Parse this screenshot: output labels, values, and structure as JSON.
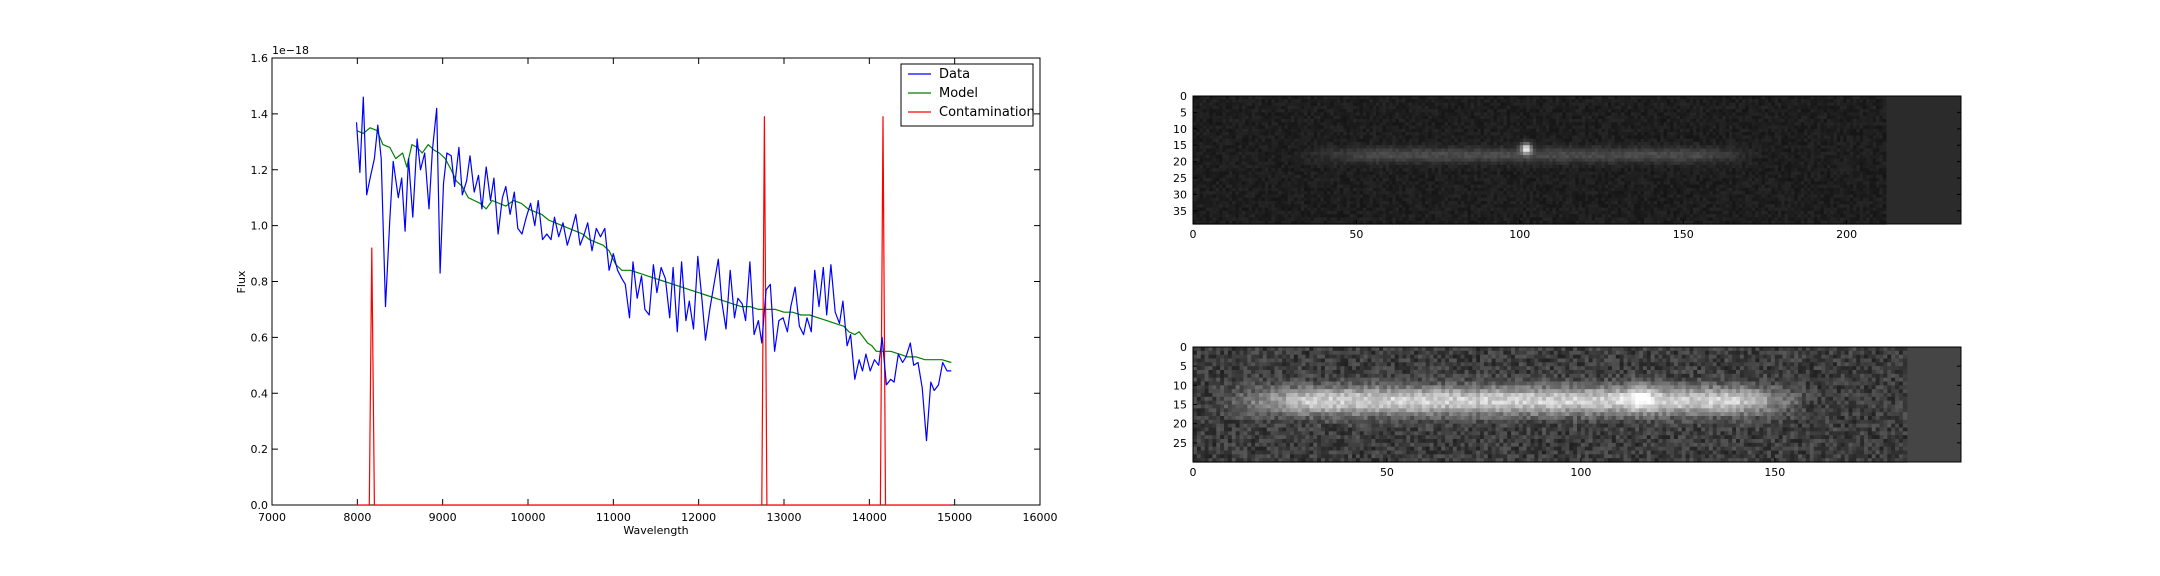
{
  "chart_data": [
    {
      "type": "line",
      "title": "",
      "xlabel": "Wavelength",
      "ylabel": "Flux",
      "xlim": [
        7000,
        16000
      ],
      "ylim": [
        0.0,
        1.6
      ],
      "offset_text": "1e−18",
      "x_ticks": [
        "7000",
        "8000",
        "9000",
        "10000",
        "11000",
        "12000",
        "13000",
        "14000",
        "15000",
        "16000"
      ],
      "y_ticks": [
        "0.0",
        "0.2",
        "0.4",
        "0.6",
        "0.8",
        "1.0",
        "1.2",
        "1.4",
        "1.6"
      ],
      "legend_position": "top-right",
      "series": [
        {
          "name": "Data",
          "color": "#0000ff",
          "points": [
            [
              7990,
              1.37
            ],
            [
              8030,
              1.19
            ],
            [
              8070,
              1.46
            ],
            [
              8110,
              1.11
            ],
            [
              8150,
              1.17
            ],
            [
              8200,
              1.24
            ],
            [
              8240,
              1.36
            ],
            [
              8280,
              1.24
            ],
            [
              8330,
              0.71
            ],
            [
              8380,
              1.02
            ],
            [
              8420,
              1.23
            ],
            [
              8480,
              1.1
            ],
            [
              8520,
              1.17
            ],
            [
              8560,
              0.98
            ],
            [
              8600,
              1.24
            ],
            [
              8650,
              1.03
            ],
            [
              8700,
              1.31
            ],
            [
              8740,
              1.2
            ],
            [
              8790,
              1.26
            ],
            [
              8840,
              1.06
            ],
            [
              8880,
              1.27
            ],
            [
              8930,
              1.42
            ],
            [
              8970,
              0.83
            ],
            [
              9010,
              1.15
            ],
            [
              9050,
              1.26
            ],
            [
              9100,
              1.25
            ],
            [
              9140,
              1.14
            ],
            [
              9190,
              1.28
            ],
            [
              9230,
              1.11
            ],
            [
              9280,
              1.16
            ],
            [
              9320,
              1.25
            ],
            [
              9370,
              1.12
            ],
            [
              9420,
              1.18
            ],
            [
              9460,
              1.06
            ],
            [
              9510,
              1.21
            ],
            [
              9560,
              1.09
            ],
            [
              9600,
              1.17
            ],
            [
              9650,
              0.97
            ],
            [
              9700,
              1.1
            ],
            [
              9740,
              1.14
            ],
            [
              9790,
              1.04
            ],
            [
              9840,
              1.12
            ],
            [
              9880,
              0.99
            ],
            [
              9930,
              0.97
            ],
            [
              9980,
              1.03
            ],
            [
              10030,
              1.08
            ],
            [
              10080,
              1.0
            ],
            [
              10120,
              1.09
            ],
            [
              10170,
              0.95
            ],
            [
              10220,
              0.97
            ],
            [
              10270,
              0.95
            ],
            [
              10310,
              1.03
            ],
            [
              10360,
              0.96
            ],
            [
              10410,
              1.01
            ],
            [
              10460,
              0.93
            ],
            [
              10510,
              0.98
            ],
            [
              10560,
              1.04
            ],
            [
              10610,
              0.93
            ],
            [
              10660,
              0.97
            ],
            [
              10700,
              1.01
            ],
            [
              10750,
              0.91
            ],
            [
              10800,
              0.99
            ],
            [
              10850,
              0.96
            ],
            [
              10900,
              0.99
            ],
            [
              10950,
              0.84
            ],
            [
              11000,
              0.9
            ],
            [
              11050,
              0.84
            ],
            [
              11100,
              0.81
            ],
            [
              11140,
              0.79
            ],
            [
              11190,
              0.67
            ],
            [
              11230,
              0.87
            ],
            [
              11280,
              0.74
            ],
            [
              11330,
              0.82
            ],
            [
              11370,
              0.7
            ],
            [
              11420,
              0.68
            ],
            [
              11470,
              0.86
            ],
            [
              11510,
              0.76
            ],
            [
              11560,
              0.85
            ],
            [
              11610,
              0.81
            ],
            [
              11660,
              0.67
            ],
            [
              11700,
              0.85
            ],
            [
              11750,
              0.62
            ],
            [
              11800,
              0.87
            ],
            [
              11850,
              0.66
            ],
            [
              11890,
              0.73
            ],
            [
              11940,
              0.63
            ],
            [
              11990,
              0.89
            ],
            [
              12040,
              0.73
            ],
            [
              12080,
              0.59
            ],
            [
              12130,
              0.7
            ],
            [
              12180,
              0.79
            ],
            [
              12230,
              0.88
            ],
            [
              12270,
              0.73
            ],
            [
              12320,
              0.63
            ],
            [
              12370,
              0.84
            ],
            [
              12420,
              0.67
            ],
            [
              12460,
              0.74
            ],
            [
              12510,
              0.72
            ],
            [
              12550,
              0.66
            ],
            [
              12600,
              0.87
            ],
            [
              12650,
              0.61
            ],
            [
              12700,
              0.66
            ],
            [
              12740,
              0.58
            ],
            [
              12790,
              0.77
            ],
            [
              12840,
              0.79
            ],
            [
              12890,
              0.55
            ],
            [
              12940,
              0.66
            ],
            [
              12990,
              0.67
            ],
            [
              13040,
              0.62
            ],
            [
              13080,
              0.71
            ],
            [
              13130,
              0.78
            ],
            [
              13180,
              0.64
            ],
            [
              13230,
              0.61
            ],
            [
              13270,
              0.67
            ],
            [
              13320,
              0.62
            ],
            [
              13360,
              0.84
            ],
            [
              13410,
              0.71
            ],
            [
              13460,
              0.85
            ],
            [
              13500,
              0.68
            ],
            [
              13550,
              0.86
            ],
            [
              13600,
              0.69
            ],
            [
              13650,
              0.65
            ],
            [
              13690,
              0.73
            ],
            [
              13740,
              0.57
            ],
            [
              13780,
              0.61
            ],
            [
              13830,
              0.45
            ],
            [
              13880,
              0.52
            ],
            [
              13920,
              0.48
            ],
            [
              13960,
              0.54
            ],
            [
              14010,
              0.48
            ],
            [
              14060,
              0.52
            ],
            [
              14110,
              0.5
            ],
            [
              14150,
              0.6
            ],
            [
              14200,
              0.43
            ],
            [
              14250,
              0.45
            ],
            [
              14290,
              0.44
            ],
            [
              14340,
              0.54
            ],
            [
              14390,
              0.51
            ],
            [
              14430,
              0.53
            ],
            [
              14480,
              0.58
            ],
            [
              14520,
              0.5
            ],
            [
              14570,
              0.51
            ],
            [
              14620,
              0.42
            ],
            [
              14670,
              0.23
            ],
            [
              14720,
              0.44
            ],
            [
              14760,
              0.41
            ],
            [
              14810,
              0.43
            ],
            [
              14860,
              0.51
            ],
            [
              14910,
              0.48
            ],
            [
              14960,
              0.48
            ]
          ]
        },
        {
          "name": "Model",
          "color": "#008000",
          "points": [
            [
              7990,
              1.34
            ],
            [
              8070,
              1.33
            ],
            [
              8150,
              1.35
            ],
            [
              8230,
              1.34
            ],
            [
              8300,
              1.29
            ],
            [
              8380,
              1.28
            ],
            [
              8450,
              1.24
            ],
            [
              8530,
              1.26
            ],
            [
              8580,
              1.21
            ],
            [
              8640,
              1.29
            ],
            [
              8700,
              1.28
            ],
            [
              8760,
              1.26
            ],
            [
              8830,
              1.29
            ],
            [
              8900,
              1.27
            ],
            [
              8960,
              1.26
            ],
            [
              9030,
              1.24
            ],
            [
              9100,
              1.2
            ],
            [
              9160,
              1.16
            ],
            [
              9230,
              1.14
            ],
            [
              9300,
              1.1
            ],
            [
              9370,
              1.09
            ],
            [
              9440,
              1.08
            ],
            [
              9510,
              1.06
            ],
            [
              9580,
              1.09
            ],
            [
              9660,
              1.08
            ],
            [
              9740,
              1.07
            ],
            [
              9830,
              1.09
            ],
            [
              9920,
              1.08
            ],
            [
              10000,
              1.06
            ],
            [
              10080,
              1.05
            ],
            [
              10160,
              1.04
            ],
            [
              10240,
              1.02
            ],
            [
              10320,
              1.01
            ],
            [
              10400,
              1.0
            ],
            [
              10480,
              0.99
            ],
            [
              10560,
              0.98
            ],
            [
              10640,
              0.97
            ],
            [
              10720,
              0.95
            ],
            [
              10800,
              0.94
            ],
            [
              10880,
              0.93
            ],
            [
              10950,
              0.91
            ],
            [
              11030,
              0.86
            ],
            [
              11100,
              0.84
            ],
            [
              11200,
              0.84
            ],
            [
              11300,
              0.83
            ],
            [
              11400,
              0.82
            ],
            [
              11500,
              0.81
            ],
            [
              11600,
              0.8
            ],
            [
              11700,
              0.79
            ],
            [
              11800,
              0.78
            ],
            [
              11900,
              0.77
            ],
            [
              12000,
              0.76
            ],
            [
              12100,
              0.75
            ],
            [
              12200,
              0.74
            ],
            [
              12300,
              0.73
            ],
            [
              12400,
              0.72
            ],
            [
              12500,
              0.71
            ],
            [
              12600,
              0.71
            ],
            [
              12700,
              0.7
            ],
            [
              12800,
              0.7
            ],
            [
              12900,
              0.7
            ],
            [
              13000,
              0.69
            ],
            [
              13100,
              0.69
            ],
            [
              13200,
              0.68
            ],
            [
              13300,
              0.68
            ],
            [
              13400,
              0.67
            ],
            [
              13500,
              0.66
            ],
            [
              13600,
              0.65
            ],
            [
              13700,
              0.64
            ],
            [
              13760,
              0.62
            ],
            [
              13830,
              0.61
            ],
            [
              13880,
              0.62
            ],
            [
              13930,
              0.6
            ],
            [
              13980,
              0.58
            ],
            [
              14030,
              0.57
            ],
            [
              14080,
              0.55
            ],
            [
              14150,
              0.55
            ],
            [
              14250,
              0.55
            ],
            [
              14350,
              0.54
            ],
            [
              14450,
              0.53
            ],
            [
              14550,
              0.53
            ],
            [
              14650,
              0.52
            ],
            [
              14750,
              0.52
            ],
            [
              14850,
              0.52
            ],
            [
              14960,
              0.51
            ]
          ]
        },
        {
          "name": "Contamination",
          "color": "#ff0000",
          "points": [
            [
              7990,
              0.0
            ],
            [
              8100,
              0.0
            ],
            [
              8140,
              0.0
            ],
            [
              8170,
              0.92
            ],
            [
              8200,
              0.0
            ],
            [
              12400,
              0.0
            ],
            [
              12740,
              0.0
            ],
            [
              12770,
              1.39
            ],
            [
              12800,
              0.0
            ],
            [
              14110,
              0.0
            ],
            [
              14130,
              0.0
            ],
            [
              14160,
              1.39
            ],
            [
              14190,
              0.0
            ],
            [
              14960,
              0.0
            ]
          ]
        }
      ]
    },
    {
      "type": "heatmap",
      "title": "",
      "xlim": [
        0,
        235
      ],
      "ylim": [
        39,
        0
      ],
      "x_ticks": [
        "0",
        "50",
        "100",
        "150",
        "200"
      ],
      "y_ticks": [
        "0",
        "5",
        "10",
        "15",
        "20",
        "25",
        "30",
        "35"
      ],
      "colormap": "grayscale",
      "trace_row": 18,
      "trace_x_range": [
        30,
        175
      ],
      "bright_spot": [
        102,
        16
      ],
      "filled_width": 212
    },
    {
      "type": "heatmap",
      "title": "",
      "xlim": [
        0,
        198
      ],
      "ylim": [
        30,
        0
      ],
      "x_ticks": [
        "0",
        "50",
        "100",
        "150"
      ],
      "y_ticks": [
        "0",
        "5",
        "10",
        "15",
        "20",
        "25"
      ],
      "colormap": "grayscale",
      "trace_row": 14,
      "trace_x_range": [
        5,
        160
      ],
      "bright_spot": [
        115,
        13
      ],
      "filled_width": 184
    }
  ]
}
